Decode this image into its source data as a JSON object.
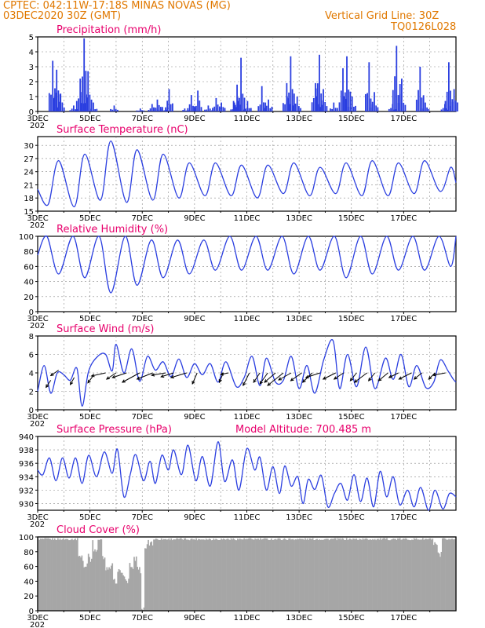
{
  "header": {
    "source_line": "CPTEC:  042:11W-17:18S  MINAS NOVAS (MG)",
    "run_line": "03DEC2020 30Z (GMT)",
    "grid_line": "Vertical Grid Line: 30Z",
    "model_code": "TQ0126L028"
  },
  "colors": {
    "line": "#2b3fe0",
    "bar": "#2b3fe0",
    "cloud": "#a6a6a6",
    "title": "#e8006c",
    "header": "#e07800",
    "grid": "#888888"
  },
  "x_axis": {
    "start": "03DEC",
    "days": 15,
    "tick_labels": [
      "3DEC",
      "5DEC",
      "7DEC",
      "9DEC",
      "11DEC",
      "13DEC",
      "15DEC",
      "17DEC"
    ],
    "year_fragment": "202"
  },
  "chart_data": [
    {
      "id": "precip",
      "type": "bar",
      "title": "Precipitation (mm/h)",
      "ylim": [
        0,
        5
      ],
      "yticks": [
        0,
        1,
        2,
        3,
        4,
        5
      ],
      "grid": true,
      "peaks": [
        [
          0.55,
          3.4
        ],
        [
          0.7,
          2.8
        ],
        [
          0.85,
          1.2
        ],
        [
          1.35,
          0.4
        ],
        [
          1.6,
          2.2
        ],
        [
          1.75,
          4.9
        ],
        [
          1.9,
          2.7
        ],
        [
          2.1,
          0.6
        ],
        [
          2.9,
          0.4
        ],
        [
          3.9,
          0.2
        ],
        [
          4.35,
          0.5
        ],
        [
          4.55,
          0.8
        ],
        [
          4.75,
          0.3
        ],
        [
          5.0,
          1.5
        ],
        [
          5.6,
          0.2
        ],
        [
          5.85,
          1.1
        ],
        [
          6.1,
          1.4
        ],
        [
          6.5,
          0.4
        ],
        [
          6.8,
          0.9
        ],
        [
          7.0,
          0.6
        ],
        [
          7.5,
          0.6
        ],
        [
          7.6,
          1.8
        ],
        [
          7.75,
          3.6
        ],
        [
          8.0,
          0.7
        ],
        [
          8.55,
          1.7
        ],
        [
          8.8,
          0.8
        ],
        [
          9.5,
          1.9
        ],
        [
          9.65,
          3.7
        ],
        [
          9.9,
          1.0
        ],
        [
          10.6,
          1.9
        ],
        [
          10.75,
          3.8
        ],
        [
          10.9,
          1.5
        ],
        [
          11.3,
          0.6
        ],
        [
          11.65,
          2.9
        ],
        [
          11.8,
          3.7
        ],
        [
          12.0,
          1.0
        ],
        [
          12.65,
          3.3
        ],
        [
          12.85,
          1.3
        ],
        [
          13.55,
          0.5
        ],
        [
          13.7,
          4.4
        ],
        [
          13.9,
          2.2
        ],
        [
          14.6,
          3.0
        ],
        [
          14.8,
          0.6
        ],
        [
          15.55,
          0.5
        ],
        [
          15.7,
          3.3
        ],
        [
          15.9,
          1.5
        ]
      ]
    },
    {
      "id": "temp",
      "type": "line",
      "title": "Surface Temperature (nC)",
      "ylim": [
        15,
        32
      ],
      "yticks": [
        15,
        18,
        21,
        24,
        27,
        30
      ],
      "grid": true,
      "daily_min": [
        16.5,
        16,
        17.5,
        17,
        17.5,
        18,
        18.5,
        18.5,
        18,
        19,
        18.5,
        19,
        18.5,
        18.5,
        19,
        19.5
      ],
      "daily_max": [
        26.5,
        28,
        31,
        29,
        28,
        26,
        26,
        25.5,
        25.5,
        26,
        25,
        26,
        26.5,
        26,
        26.5,
        25
      ],
      "start_value": 20,
      "end_value": 21.5
    },
    {
      "id": "rh",
      "type": "line",
      "title": "Relative Humidity (%)",
      "ylim": [
        0,
        100
      ],
      "yticks": [
        0,
        20,
        40,
        60,
        80,
        100
      ],
      "grid": true,
      "daily_min": [
        50,
        45,
        25,
        35,
        45,
        50,
        55,
        55,
        55,
        50,
        55,
        45,
        50,
        55,
        55,
        60
      ],
      "daily_max": [
        100,
        100,
        100,
        100,
        95,
        95,
        95,
        100,
        100,
        100,
        100,
        100,
        100,
        100,
        100,
        100
      ],
      "start_value": 75,
      "end_value": 100
    },
    {
      "id": "wind",
      "type": "line",
      "title": "Surface Wind (m/s)",
      "ylim": [
        0,
        8
      ],
      "yticks": [
        0,
        2,
        4,
        6,
        8
      ],
      "grid": true,
      "speed_points": [
        [
          0,
          2.0
        ],
        [
          0.25,
          4.8
        ],
        [
          0.5,
          1.8
        ],
        [
          0.75,
          4.0
        ],
        [
          1.0,
          3.8
        ],
        [
          1.25,
          3.2
        ],
        [
          1.5,
          4.5
        ],
        [
          1.7,
          0.4
        ],
        [
          1.95,
          4.2
        ],
        [
          2.3,
          5.8
        ],
        [
          2.6,
          6.0
        ],
        [
          2.85,
          4.2
        ],
        [
          3.0,
          7.1
        ],
        [
          3.3,
          4.0
        ],
        [
          3.6,
          6.6
        ],
        [
          3.9,
          3.1
        ],
        [
          4.2,
          5.8
        ],
        [
          4.5,
          4.3
        ],
        [
          4.8,
          5.2
        ],
        [
          5.1,
          3.6
        ],
        [
          5.4,
          5.5
        ],
        [
          5.7,
          3.5
        ],
        [
          6.0,
          5.0
        ],
        [
          6.3,
          3.8
        ],
        [
          6.6,
          5.0
        ],
        [
          6.9,
          3.0
        ],
        [
          7.2,
          5.2
        ],
        [
          7.6,
          2.5
        ],
        [
          7.9,
          3.5
        ],
        [
          8.2,
          5.8
        ],
        [
          8.5,
          2.6
        ],
        [
          8.75,
          5.6
        ],
        [
          9.1,
          3.0
        ],
        [
          9.4,
          3.2
        ],
        [
          9.7,
          5.8
        ],
        [
          10.0,
          2.3
        ],
        [
          10.3,
          4.8
        ],
        [
          10.6,
          1.8
        ],
        [
          10.95,
          5.5
        ],
        [
          11.3,
          7.5
        ],
        [
          11.55,
          2.3
        ],
        [
          11.85,
          6.0
        ],
        [
          12.2,
          2.5
        ],
        [
          12.55,
          6.8
        ],
        [
          12.9,
          2.3
        ],
        [
          13.3,
          5.6
        ],
        [
          13.6,
          3.3
        ],
        [
          13.9,
          6.0
        ],
        [
          14.2,
          2.5
        ],
        [
          14.5,
          4.8
        ],
        [
          14.85,
          2.4
        ],
        [
          15.15,
          3.0
        ],
        [
          15.4,
          5.4
        ],
        [
          15.7,
          4.2
        ],
        [
          15.9,
          3.3
        ],
        [
          16.0,
          3.0
        ]
      ],
      "vectors": [
        [
          0.5,
          3.2,
          -6,
          -9
        ],
        [
          0.8,
          4.3,
          -10,
          -7
        ],
        [
          1.4,
          3.5,
          -5,
          -9
        ],
        [
          2.1,
          3.6,
          -6,
          -8
        ],
        [
          2.6,
          4.0,
          -18,
          -4
        ],
        [
          3.0,
          4.0,
          -12,
          -8
        ],
        [
          3.4,
          4.0,
          -18,
          -6
        ],
        [
          3.9,
          4.0,
          -22,
          -12
        ],
        [
          4.4,
          4.0,
          -20,
          -8
        ],
        [
          4.9,
          4.0,
          -18,
          -3
        ],
        [
          5.2,
          4.0,
          -16,
          -5
        ],
        [
          5.7,
          4.0,
          -20,
          -6
        ],
        [
          6.1,
          4.0,
          -6,
          -14
        ],
        [
          7.1,
          4.0,
          -5,
          -12
        ],
        [
          7.3,
          4.0,
          -10,
          -2
        ],
        [
          8.1,
          4.0,
          -8,
          -16
        ],
        [
          8.5,
          4.0,
          -8,
          -12
        ],
        [
          8.8,
          4.0,
          -10,
          -14
        ],
        [
          9.1,
          4.0,
          -14,
          -12
        ],
        [
          9.4,
          4.0,
          -20,
          -16
        ],
        [
          9.7,
          4.0,
          -16,
          -9
        ],
        [
          10.1,
          4.0,
          -14,
          -10
        ],
        [
          10.5,
          4.0,
          -12,
          -12
        ],
        [
          10.8,
          4.0,
          -18,
          -6
        ],
        [
          11.4,
          4.0,
          -16,
          -8
        ],
        [
          11.7,
          4.0,
          -12,
          -8
        ],
        [
          12.2,
          4.0,
          -8,
          -10
        ],
        [
          12.6,
          4.0,
          -16,
          -12
        ],
        [
          12.9,
          4.0,
          -8,
          -10
        ],
        [
          13.4,
          4.0,
          -12,
          -10
        ],
        [
          13.8,
          4.0,
          -12,
          -6
        ],
        [
          14.3,
          4.0,
          -16,
          -8
        ],
        [
          14.7,
          4.0,
          -10,
          -8
        ],
        [
          15.2,
          4.0,
          -8,
          -8
        ],
        [
          15.6,
          4.0,
          -16,
          -3
        ]
      ]
    },
    {
      "id": "pressure",
      "type": "line",
      "title": "Surface Pressure (hPa)",
      "subtitle": "Model Altitude: 700.485 m",
      "ylim": [
        929,
        940
      ],
      "yticks": [
        930,
        932,
        934,
        936,
        938,
        940
      ],
      "grid": true,
      "points": [
        [
          0,
          935.0
        ],
        [
          0.2,
          934.3
        ],
        [
          0.45,
          936.8
        ],
        [
          0.7,
          933.4
        ],
        [
          0.95,
          936.8
        ],
        [
          1.2,
          933.8
        ],
        [
          1.45,
          936.8
        ],
        [
          1.7,
          933.0
        ],
        [
          1.95,
          937.2
        ],
        [
          2.25,
          934.0
        ],
        [
          2.55,
          937.7
        ],
        [
          2.85,
          934.5
        ],
        [
          3.05,
          938.1
        ],
        [
          3.3,
          931.0
        ],
        [
          3.55,
          934.5
        ],
        [
          3.75,
          937.3
        ],
        [
          4.05,
          933.4
        ],
        [
          4.3,
          936.3
        ],
        [
          4.5,
          933.0
        ],
        [
          4.75,
          937.2
        ],
        [
          5.0,
          935.0
        ],
        [
          5.2,
          938.0
        ],
        [
          5.5,
          934.3
        ],
        [
          5.75,
          938.7
        ],
        [
          6.05,
          933.4
        ],
        [
          6.3,
          937.0
        ],
        [
          6.6,
          932.6
        ],
        [
          6.9,
          939.2
        ],
        [
          7.15,
          933.3
        ],
        [
          7.45,
          936.5
        ],
        [
          7.7,
          932.0
        ],
        [
          8.0,
          938.2
        ],
        [
          8.3,
          935.0
        ],
        [
          8.5,
          936.9
        ],
        [
          8.75,
          932.0
        ],
        [
          9.0,
          935.5
        ],
        [
          9.25,
          931.5
        ],
        [
          9.45,
          935.6
        ],
        [
          9.7,
          932.6
        ],
        [
          9.95,
          934.0
        ],
        [
          10.15,
          930.0
        ],
        [
          10.35,
          933.6
        ],
        [
          10.6,
          932.1
        ],
        [
          10.85,
          934.2
        ],
        [
          11.1,
          929.5
        ],
        [
          11.35,
          931.5
        ],
        [
          11.6,
          933.0
        ],
        [
          11.85,
          930.5
        ],
        [
          12.1,
          934.3
        ],
        [
          12.35,
          930.3
        ],
        [
          12.6,
          933.8
        ],
        [
          12.85,
          929.5
        ],
        [
          13.1,
          934.8
        ],
        [
          13.35,
          931.0
        ],
        [
          13.6,
          934.0
        ],
        [
          13.85,
          929.8
        ],
        [
          14.15,
          932.0
        ],
        [
          14.4,
          929.5
        ],
        [
          14.65,
          932.4
        ],
        [
          14.95,
          929.0
        ],
        [
          15.2,
          932.0
        ],
        [
          15.5,
          929.2
        ],
        [
          15.75,
          931.5
        ],
        [
          16.0,
          931.0
        ]
      ]
    },
    {
      "id": "cloud",
      "type": "bar",
      "title": "Cloud Cover (%)",
      "ylim": [
        0,
        100
      ],
      "yticks": [
        0,
        20,
        40,
        60,
        80,
        100
      ],
      "grid": false,
      "notable_dips": [
        [
          1.6,
          78
        ],
        [
          1.7,
          72
        ],
        [
          1.8,
          60
        ],
        [
          1.9,
          80
        ],
        [
          2.0,
          70
        ],
        [
          2.2,
          85
        ],
        [
          2.5,
          70
        ],
        [
          2.65,
          55
        ],
        [
          2.8,
          60
        ],
        [
          2.95,
          40
        ],
        [
          3.1,
          55
        ],
        [
          3.25,
          48
        ],
        [
          3.4,
          40
        ],
        [
          3.55,
          60
        ],
        [
          3.7,
          72
        ],
        [
          3.85,
          55
        ],
        [
          4.0,
          4
        ],
        [
          4.1,
          88
        ],
        [
          4.3,
          92
        ],
        [
          15.2,
          92
        ],
        [
          15.35,
          78
        ]
      ],
      "baseline": 97
    }
  ]
}
